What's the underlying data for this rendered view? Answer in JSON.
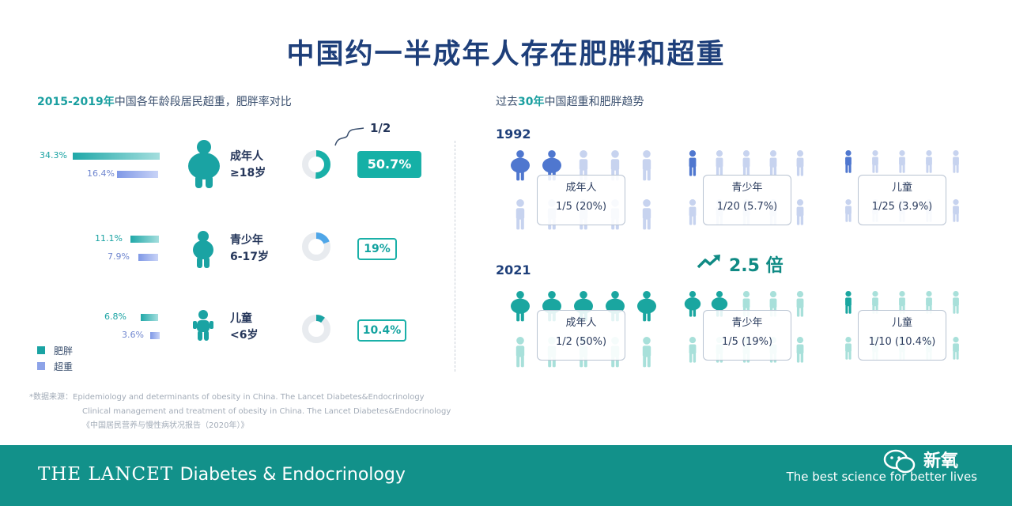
{
  "title": "中国约一半成年人存在肥胖和超重",
  "left": {
    "subtitle_hl": "2015-2019年",
    "subtitle_rest": "中国各年龄段居民超重，肥胖率对比",
    "groups": [
      {
        "label1": "成年人",
        "label2": "≥18岁",
        "obesity": 34.3,
        "overweight": 16.4,
        "obesity_text": "34.3%",
        "overweight_text": "16.4%",
        "total_text": "50.7%",
        "total": 50.7
      },
      {
        "label1": "青少年",
        "label2": "6-17岁",
        "obesity": 11.1,
        "overweight": 7.9,
        "obesity_text": "11.1%",
        "overweight_text": "7.9%",
        "total_text": "19%",
        "total": 19
      },
      {
        "label1": "儿童",
        "label2": "<6岁",
        "obesity": 6.8,
        "overweight": 3.6,
        "obesity_text": "6.8%",
        "overweight_text": "3.6%",
        "total_text": "10.4%",
        "total": 10.4
      }
    ],
    "half_note": "1/2",
    "legend": {
      "obesity": "肥胖",
      "overweight": "超重"
    }
  },
  "right": {
    "subtitle_a": "过去",
    "subtitle_hl": "30年",
    "subtitle_b": "中国超重和肥胖趋势",
    "years": [
      {
        "year": "1992",
        "groups": [
          {
            "label": "成年人",
            "value": "1/5 (20%)",
            "fraction": 0.2
          },
          {
            "label": "青少年",
            "value": "1/20 (5.7%)",
            "fraction": 0.057
          },
          {
            "label": "儿童",
            "value": "1/25 (3.9%)",
            "fraction": 0.039
          }
        ]
      },
      {
        "year": "2021",
        "groups": [
          {
            "label": "成年人",
            "value": "1/2 (50%)",
            "fraction": 0.5
          },
          {
            "label": "青少年",
            "value": "1/5 (19%)",
            "fraction": 0.19
          },
          {
            "label": "儿童",
            "value": "1/10 (10.4%)",
            "fraction": 0.104
          }
        ]
      }
    ],
    "growth": "2.5 倍"
  },
  "sources": {
    "line1": "*数据来源：Epidemiology and determinants of obesity in China. The Lancet Diabetes&Endocrinology",
    "line2": "Clinical management and treatment of obesity in China. The Lancet Diabetes&Endocrinology",
    "line3": "《中国居民营养与慢性病状况报告（2020年）》"
  },
  "footer": {
    "journal": "THE LANCET",
    "journal_sub": "Diabetes & Endocrinology",
    "tagline": "The best science for better lives",
    "watermark": "新氧"
  },
  "colors": {
    "obesity": "#1aa3a3",
    "overweight": "#7f98e6",
    "title": "#1e3f7a",
    "footer": "#12918a",
    "icon_1992_highlight": "#4f77cf",
    "icon_1992_base": "#c7d3ef",
    "icon_2021_highlight": "#1aa6a0",
    "icon_2021_base": "#a8e0da"
  },
  "chart_data": {
    "type": "bar",
    "categories": [
      "成年人 ≥18岁",
      "青少年 6-17岁",
      "儿童 <6岁"
    ],
    "series": [
      {
        "name": "肥胖",
        "values": [
          34.3,
          11.1,
          6.8
        ]
      },
      {
        "name": "超重",
        "values": [
          16.4,
          7.9,
          3.6
        ]
      }
    ],
    "title": "2015-2019年中国各年龄段居民超重，肥胖率对比",
    "xlabel": "",
    "ylabel": "",
    "totals": [
      50.7,
      19,
      10.4
    ],
    "legend": "bottom-left"
  }
}
